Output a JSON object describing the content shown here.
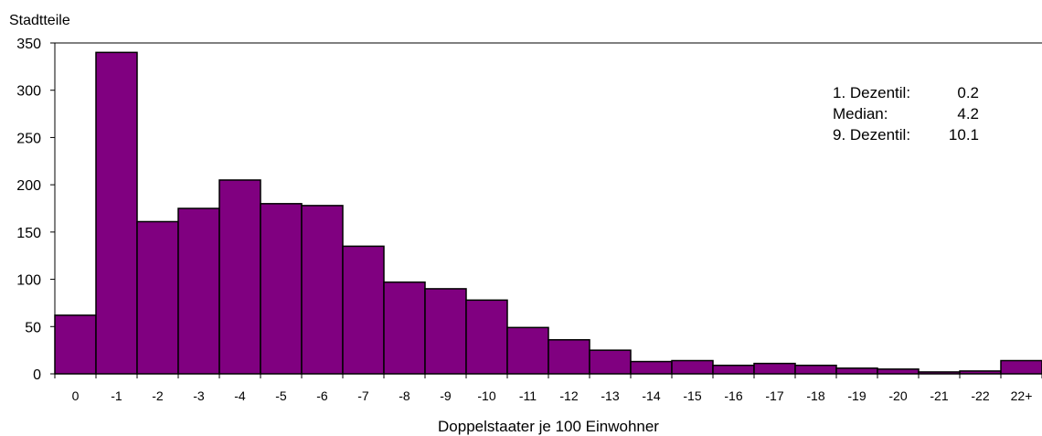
{
  "chart_data": {
    "type": "bar",
    "title": "",
    "ylabel": "Stadtteile",
    "xlabel": "Doppelstaater je 100 Einwohner",
    "categories": [
      "0",
      "-1",
      "-2",
      "-3",
      "-4",
      "-5",
      "-6",
      "-7",
      "-8",
      "-9",
      "-10",
      "-11",
      "-12",
      "-13",
      "-14",
      "-15",
      "-16",
      "-17",
      "-18",
      "-19",
      "-20",
      "-21",
      "-22",
      "22+"
    ],
    "values": [
      62,
      340,
      161,
      175,
      205,
      180,
      178,
      135,
      97,
      90,
      78,
      49,
      36,
      25,
      13,
      14,
      9,
      11,
      9,
      6,
      5,
      2,
      3,
      14
    ],
    "ylim": [
      0,
      350
    ],
    "yticks": [
      0,
      50,
      100,
      150,
      200,
      250,
      300,
      350
    ],
    "grid": false,
    "bar_color": "#800080",
    "bar_edge_color": "#000000",
    "stats": [
      {
        "label": "1. Dezentil:",
        "value": "0.2"
      },
      {
        "label": "Median:",
        "value": "4.2"
      },
      {
        "label": "9. Dezentil:",
        "value": "10.1"
      }
    ]
  }
}
